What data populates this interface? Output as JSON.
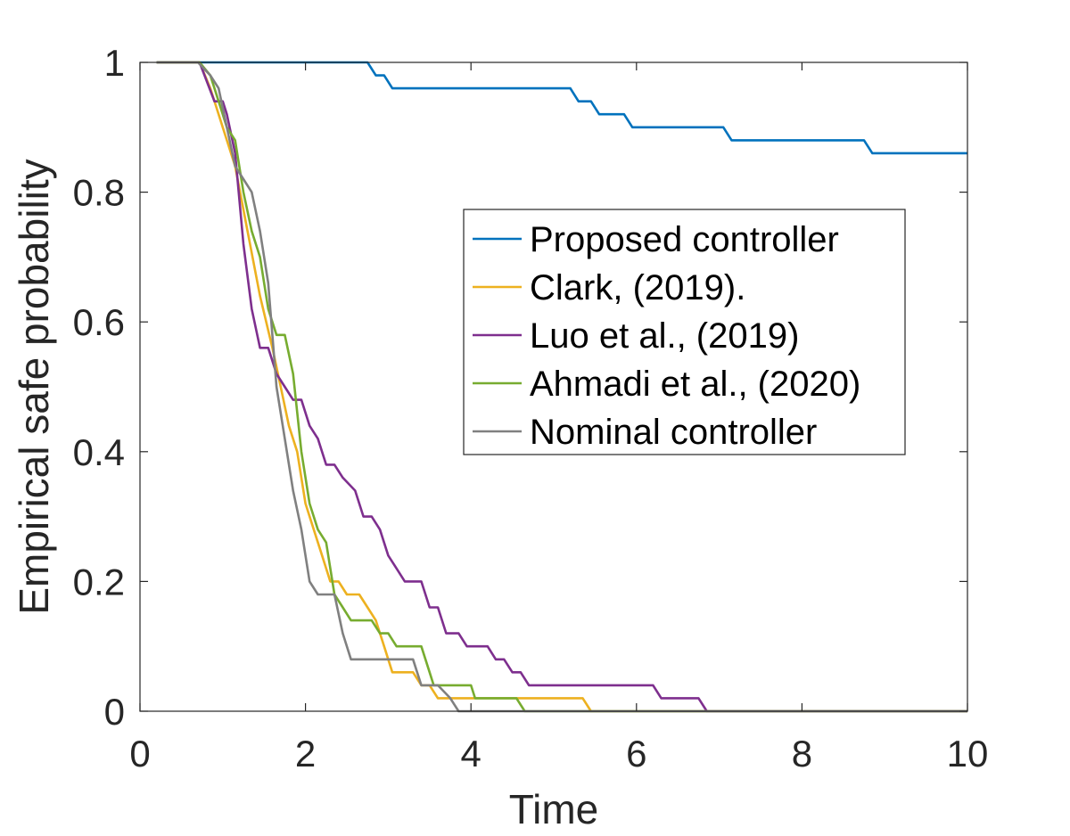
{
  "chart_data": {
    "type": "line",
    "xlabel": "Time",
    "ylabel": "Empirical safe probability",
    "xlim": [
      0,
      10
    ],
    "ylim": [
      0,
      1
    ],
    "xticks": [
      "0",
      "2",
      "4",
      "6",
      "8",
      "10"
    ],
    "yticks": [
      "0",
      "0.2",
      "0.4",
      "0.6",
      "0.8",
      "1"
    ],
    "grid": false,
    "legend_position": "right",
    "series": [
      {
        "name": "Proposed controller",
        "color": "#0072BD",
        "points": [
          [
            0.2,
            1
          ],
          [
            2.75,
            1
          ],
          [
            2.85,
            0.98
          ],
          [
            2.95,
            0.98
          ],
          [
            3.05,
            0.96
          ],
          [
            5.2,
            0.96
          ],
          [
            5.3,
            0.94
          ],
          [
            5.45,
            0.94
          ],
          [
            5.55,
            0.92
          ],
          [
            5.85,
            0.92
          ],
          [
            5.95,
            0.9
          ],
          [
            7.05,
            0.9
          ],
          [
            7.15,
            0.88
          ],
          [
            8.75,
            0.88
          ],
          [
            8.85,
            0.86
          ],
          [
            10,
            0.86
          ]
        ]
      },
      {
        "name": "Clark, (2019).",
        "color": "#EDB120",
        "points": [
          [
            0.2,
            1
          ],
          [
            0.72,
            1
          ],
          [
            0.85,
            0.96
          ],
          [
            1.0,
            0.9
          ],
          [
            1.15,
            0.84
          ],
          [
            1.3,
            0.74
          ],
          [
            1.45,
            0.64
          ],
          [
            1.6,
            0.56
          ],
          [
            1.7,
            0.5
          ],
          [
            1.8,
            0.44
          ],
          [
            1.9,
            0.4
          ],
          [
            2.0,
            0.32
          ],
          [
            2.1,
            0.28
          ],
          [
            2.2,
            0.24
          ],
          [
            2.3,
            0.2
          ],
          [
            2.4,
            0.2
          ],
          [
            2.5,
            0.18
          ],
          [
            2.65,
            0.18
          ],
          [
            2.75,
            0.16
          ],
          [
            2.85,
            0.14
          ],
          [
            2.95,
            0.1
          ],
          [
            3.05,
            0.06
          ],
          [
            3.3,
            0.06
          ],
          [
            3.4,
            0.04
          ],
          [
            3.5,
            0.04
          ],
          [
            3.6,
            0.02
          ],
          [
            4.0,
            0.02
          ],
          [
            5.35,
            0.02
          ],
          [
            5.45,
            0
          ],
          [
            10,
            0
          ]
        ]
      },
      {
        "name": "Luo et al., (2019)",
        "color": "#7E2F8E",
        "points": [
          [
            0.2,
            1
          ],
          [
            0.72,
            1
          ],
          [
            0.9,
            0.94
          ],
          [
            1.0,
            0.94
          ],
          [
            1.05,
            0.92
          ],
          [
            1.15,
            0.86
          ],
          [
            1.25,
            0.72
          ],
          [
            1.35,
            0.62
          ],
          [
            1.45,
            0.56
          ],
          [
            1.55,
            0.56
          ],
          [
            1.65,
            0.52
          ],
          [
            1.75,
            0.5
          ],
          [
            1.85,
            0.48
          ],
          [
            1.95,
            0.48
          ],
          [
            2.05,
            0.44
          ],
          [
            2.15,
            0.42
          ],
          [
            2.25,
            0.38
          ],
          [
            2.35,
            0.38
          ],
          [
            2.45,
            0.36
          ],
          [
            2.6,
            0.34
          ],
          [
            2.7,
            0.3
          ],
          [
            2.8,
            0.3
          ],
          [
            2.9,
            0.28
          ],
          [
            3.0,
            0.24
          ],
          [
            3.1,
            0.22
          ],
          [
            3.2,
            0.2
          ],
          [
            3.4,
            0.2
          ],
          [
            3.5,
            0.16
          ],
          [
            3.6,
            0.16
          ],
          [
            3.7,
            0.12
          ],
          [
            3.85,
            0.12
          ],
          [
            3.95,
            0.1
          ],
          [
            4.2,
            0.1
          ],
          [
            4.3,
            0.08
          ],
          [
            4.4,
            0.08
          ],
          [
            4.5,
            0.06
          ],
          [
            4.6,
            0.06
          ],
          [
            4.7,
            0.04
          ],
          [
            6.2,
            0.04
          ],
          [
            6.3,
            0.02
          ],
          [
            6.75,
            0.02
          ],
          [
            6.85,
            0
          ],
          [
            10,
            0
          ]
        ]
      },
      {
        "name": "Ahmadi et al., (2020)",
        "color": "#77AC30",
        "points": [
          [
            0.2,
            1
          ],
          [
            0.72,
            1
          ],
          [
            0.85,
            0.98
          ],
          [
            0.95,
            0.94
          ],
          [
            1.05,
            0.9
          ],
          [
            1.15,
            0.88
          ],
          [
            1.25,
            0.8
          ],
          [
            1.35,
            0.74
          ],
          [
            1.45,
            0.7
          ],
          [
            1.55,
            0.62
          ],
          [
            1.65,
            0.58
          ],
          [
            1.75,
            0.58
          ],
          [
            1.85,
            0.52
          ],
          [
            1.95,
            0.4
          ],
          [
            2.05,
            0.32
          ],
          [
            2.15,
            0.28
          ],
          [
            2.25,
            0.26
          ],
          [
            2.35,
            0.18
          ],
          [
            2.45,
            0.16
          ],
          [
            2.55,
            0.14
          ],
          [
            2.8,
            0.14
          ],
          [
            2.9,
            0.12
          ],
          [
            3.0,
            0.12
          ],
          [
            3.1,
            0.1
          ],
          [
            3.4,
            0.1
          ],
          [
            3.5,
            0.06
          ],
          [
            3.55,
            0.04
          ],
          [
            4.0,
            0.04
          ],
          [
            4.05,
            0.02
          ],
          [
            4.55,
            0.02
          ],
          [
            4.65,
            0
          ],
          [
            10,
            0
          ]
        ]
      },
      {
        "name": "Nominal controller",
        "color": "#808080",
        "points": [
          [
            0.2,
            1
          ],
          [
            0.7,
            1
          ],
          [
            0.85,
            0.98
          ],
          [
            0.95,
            0.96
          ],
          [
            1.05,
            0.9
          ],
          [
            1.15,
            0.84
          ],
          [
            1.25,
            0.82
          ],
          [
            1.35,
            0.8
          ],
          [
            1.45,
            0.74
          ],
          [
            1.55,
            0.66
          ],
          [
            1.65,
            0.5
          ],
          [
            1.75,
            0.42
          ],
          [
            1.85,
            0.34
          ],
          [
            1.95,
            0.28
          ],
          [
            2.05,
            0.2
          ],
          [
            2.15,
            0.18
          ],
          [
            2.35,
            0.18
          ],
          [
            2.45,
            0.12
          ],
          [
            2.55,
            0.08
          ],
          [
            3.3,
            0.08
          ],
          [
            3.4,
            0.04
          ],
          [
            3.5,
            0.04
          ],
          [
            3.6,
            0.04
          ],
          [
            3.75,
            0.02
          ],
          [
            3.85,
            0
          ],
          [
            10,
            0
          ]
        ]
      }
    ]
  }
}
